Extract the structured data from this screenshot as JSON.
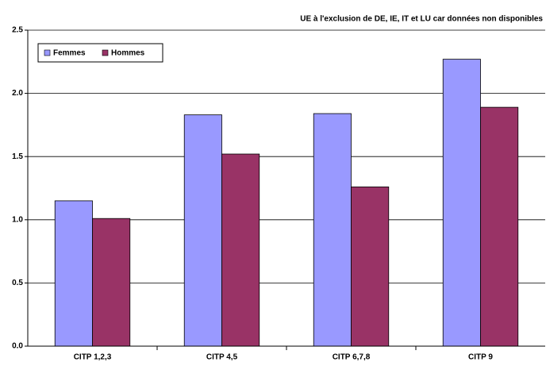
{
  "chart_data": {
    "type": "bar",
    "annotation": "UE à l'exclusion de DE, IE, IT et LU car données non disponibles",
    "categories": [
      "CITP 1,2,3",
      "CITP 4,5",
      "CITP 6,7,8",
      "CITP 9"
    ],
    "series": [
      {
        "name": "Femmes",
        "color": "#9999ff",
        "values": [
          1.15,
          1.83,
          1.84,
          2.27
        ]
      },
      {
        "name": "Hommes",
        "color": "#993366",
        "values": [
          1.01,
          1.52,
          1.26,
          1.89
        ]
      }
    ],
    "ylim": [
      0,
      2.5
    ],
    "yticks": [
      {
        "value": 0,
        "label": "0.0"
      },
      0.5,
      {
        "value": 1,
        "label": "1.0"
      },
      1.5,
      {
        "value": 2,
        "label": "2.0"
      },
      2.5
    ],
    "grid": true,
    "legend": "top-left"
  }
}
